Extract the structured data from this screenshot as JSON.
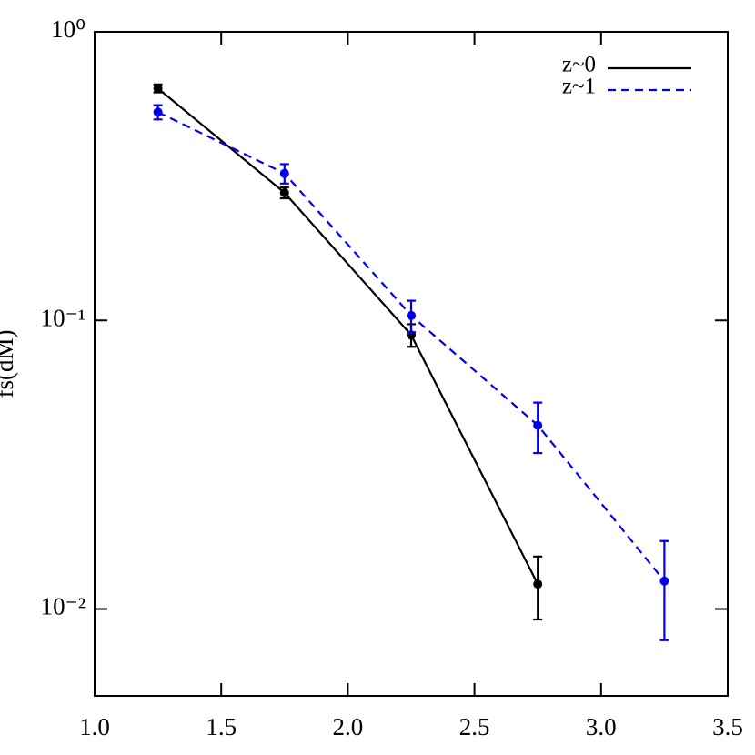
{
  "chart_data": {
    "type": "line",
    "ylabel": "fs(dM)",
    "xlim": [
      1.0,
      3.5
    ],
    "xticks": [
      {
        "value": 1.0,
        "label": "1.0"
      },
      1.5,
      {
        "value": 2.0,
        "label": "2.0"
      },
      2.5,
      {
        "value": 3.0,
        "label": "3.0"
      },
      3.5
    ],
    "ylim": [
      0.005,
      1
    ],
    "yticks": [
      {
        "value": 1,
        "label": "10⁰"
      },
      {
        "value": 0.1,
        "label": "10⁻¹"
      },
      {
        "value": 0.01,
        "label": "10⁻²"
      }
    ],
    "log_y": true,
    "legend": "upper right",
    "series": [
      {
        "name": "z~0",
        "color": "#000000",
        "dash": false,
        "x": [
          1.25,
          1.75,
          2.25,
          2.75
        ],
        "values": [
          0.637,
          0.277,
          0.089,
          0.0122
        ],
        "errors": [
          0.02,
          0.012,
          0.008,
          0.003
        ]
      },
      {
        "name": "z~1",
        "color": "#0000ee",
        "dash": true,
        "x": [
          1.25,
          1.75,
          2.25,
          2.75,
          3.25
        ],
        "values": [
          0.527,
          0.323,
          0.104,
          0.0433,
          0.0125
        ],
        "errors": [
          0.03,
          0.025,
          0.013,
          0.0086,
          0.0047
        ]
      }
    ]
  }
}
